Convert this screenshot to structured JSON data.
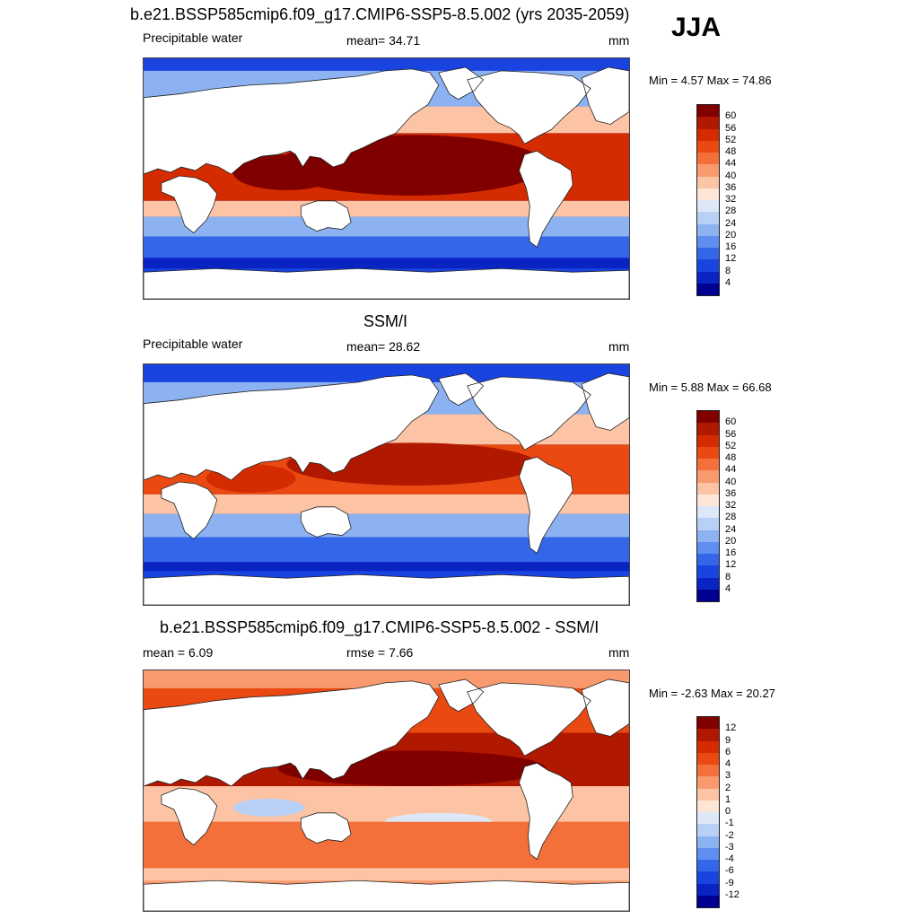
{
  "season": "JJA",
  "panels": [
    {
      "id": "model",
      "title": "b.e21.BSSP585cmip6.f09_g17.CMIP6-SSP5-8.5.002 (yrs 2035-2059)",
      "left_label": "Precipitable water",
      "center_label": "mean=  34.71",
      "units": "mm",
      "minmax": "Min =   4.57 Max =  74.86",
      "colorbar": {
        "labels": [
          "60",
          "56",
          "52",
          "48",
          "44",
          "40",
          "36",
          "32",
          "28",
          "24",
          "20",
          "16",
          "12",
          "8",
          "4"
        ],
        "colors": [
          "#800000",
          "#b01800",
          "#d42c00",
          "#ea4a12",
          "#f4703a",
          "#f99a6e",
          "#fcc4a4",
          "#fde6d6",
          "#dce8f8",
          "#b8d0f6",
          "#8cb2f2",
          "#5e8ef0",
          "#3466ea",
          "#1a44e0",
          "#0a24c4",
          "#000090"
        ]
      }
    },
    {
      "id": "obs",
      "title": "SSM/I",
      "left_label": "Precipitable water",
      "center_label": "mean=  28.62",
      "units": "mm",
      "minmax": "Min =   5.88 Max =  66.68",
      "colorbar": {
        "labels": [
          "60",
          "56",
          "52",
          "48",
          "44",
          "40",
          "36",
          "32",
          "28",
          "24",
          "20",
          "16",
          "12",
          "8",
          "4"
        ],
        "colors": [
          "#800000",
          "#b01800",
          "#d42c00",
          "#ea4a12",
          "#f4703a",
          "#f99a6e",
          "#fcc4a4",
          "#fde6d6",
          "#dce8f8",
          "#b8d0f6",
          "#8cb2f2",
          "#5e8ef0",
          "#3466ea",
          "#1a44e0",
          "#0a24c4",
          "#000090"
        ]
      }
    },
    {
      "id": "diff",
      "title": "b.e21.BSSP585cmip6.f09_g17.CMIP6-SSP5-8.5.002 - SSM/I",
      "left_label": "mean =   6.09",
      "center_label": "rmse =   7.66",
      "units": "mm",
      "minmax": "Min =  -2.63 Max =  20.27",
      "colorbar": {
        "labels": [
          "12",
          "9",
          "6",
          "4",
          "3",
          "2",
          "1",
          "0",
          "-1",
          "-2",
          "-3",
          "-4",
          "-6",
          "-9",
          "-12"
        ],
        "colors": [
          "#800000",
          "#b01800",
          "#d42c00",
          "#ea4a12",
          "#f4703a",
          "#f99a6e",
          "#fcc4a4",
          "#fde6d6",
          "#dce8f8",
          "#b8d0f6",
          "#8cb2f2",
          "#5e8ef0",
          "#3466ea",
          "#1a44e0",
          "#0a24c4",
          "#000090"
        ]
      }
    }
  ]
}
